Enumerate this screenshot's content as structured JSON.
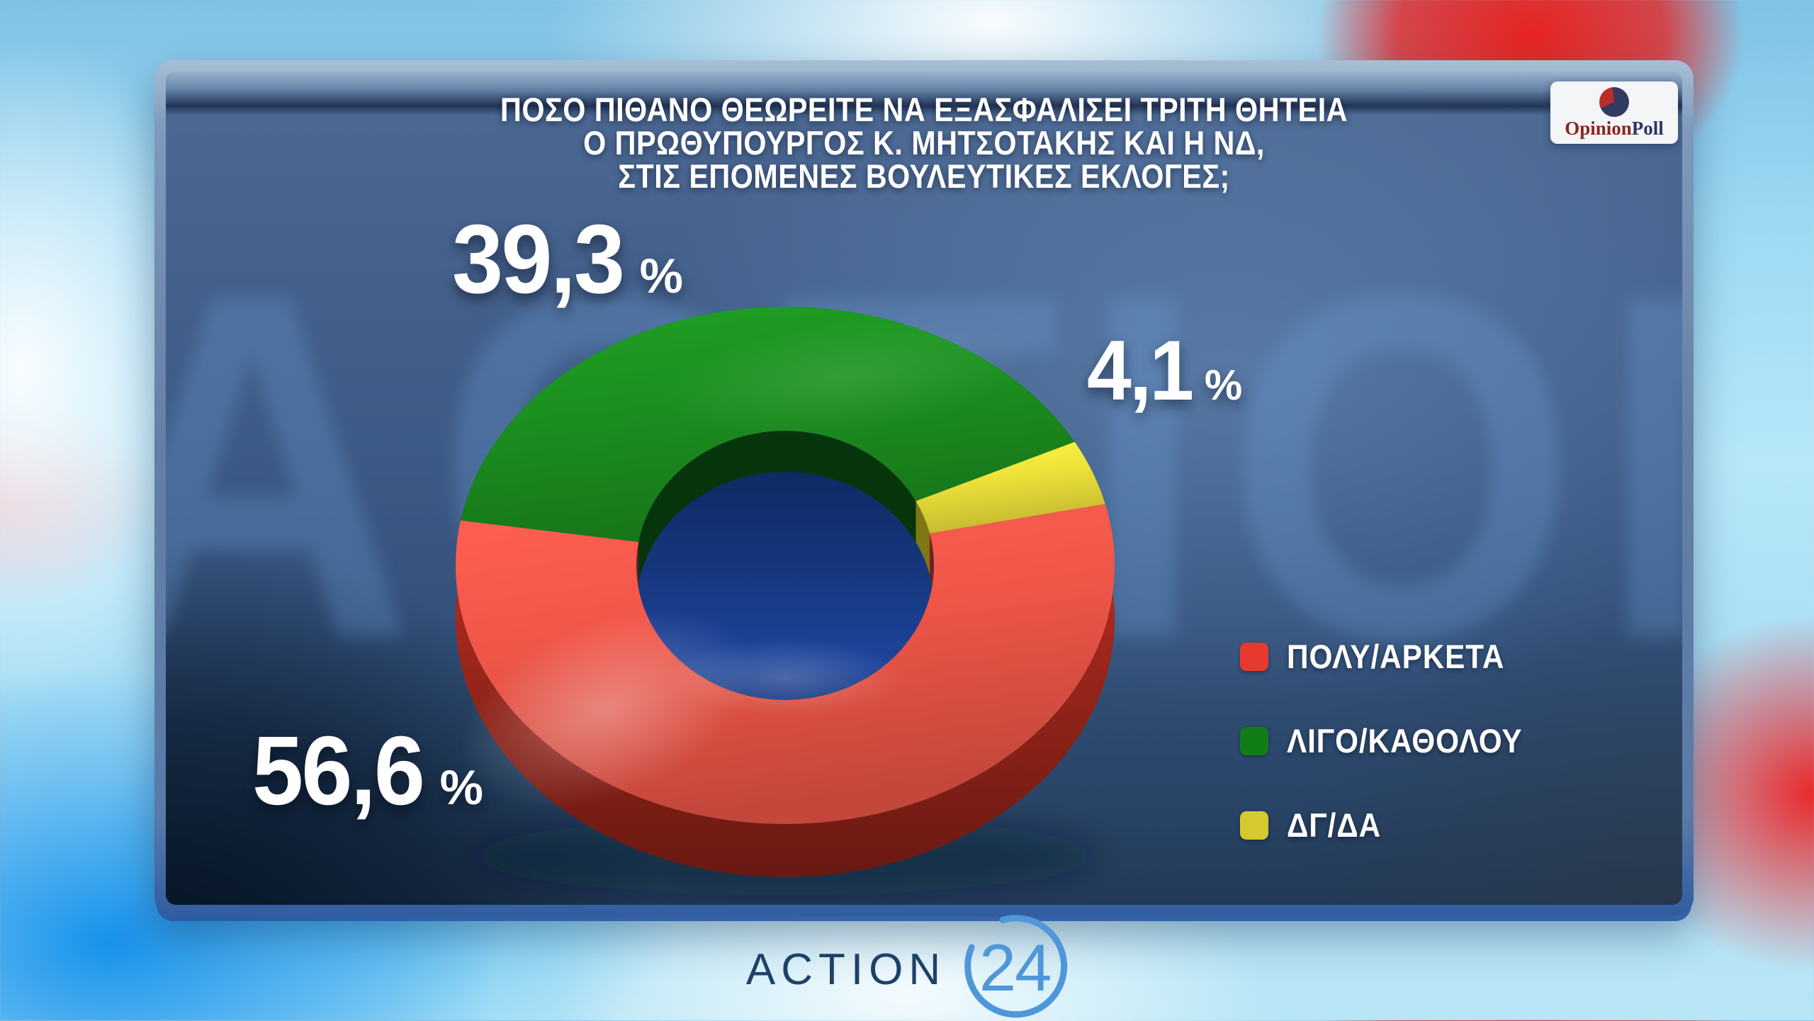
{
  "background": {
    "watermark_text": "ACTION"
  },
  "panel": {
    "title_lines": [
      "ΠΟΣΟ ΠΙΘΑΝΟ ΘΕΩΡΕΙΤΕ ΝΑ ΕΞΑΣΦΑΛΙΣΕΙ ΤΡΙΤΗ ΘΗΤΕΙΑ",
      "Ο ΠΡΩΘΥΠΟΥΡΓΟΣ Κ. ΜΗΤΣΟΤΑΚΗΣ ΚΑΙ Η ΝΔ,",
      "ΣΤΙΣ ΕΠΟΜΕΝΕΣ ΒΟΥΛΕΥΤΙΚΕΣ ΕΚΛΟΓΕΣ;"
    ]
  },
  "badge": {
    "brand_first": "Opinion",
    "brand_second": "Poll",
    "colors": {
      "first": "#8c2420",
      "second": "#2e3660",
      "pie_red": "#b92c28",
      "pie_navy": "#323a60"
    }
  },
  "chart_data": {
    "type": "pie",
    "subtype": "donut-3d",
    "title": "ΠΟΣΟ ΠΙΘΑΝΟ ΘΕΩΡΕΙΤΕ ΝΑ ΕΞΑΣΦΑΛΙΣΕΙ ΤΡΙΤΗ ΘΗΤΕΙΑ Ο ΠΡΩΘΥΠΟΥΡΓΟΣ Κ. ΜΗΤΣΟΤΑΚΗΣ ΚΑΙ Η ΝΔ, ΣΤΙΣ ΕΠΟΜΕΝΕΣ ΒΟΥΛΕΥΤΙΚΕΣ ΕΚΛΟΓΕΣ;",
    "unit": "%",
    "start_angle_deg": 170,
    "clockwise": true,
    "slices": [
      {
        "label": "ΛΙΓΟ/ΚΑΘΟΛΟΥ",
        "value": 39.3,
        "display": "39,3",
        "color": "#1c9020",
        "dark": "#0a4a0f"
      },
      {
        "label": "ΔΓ/ΔΑ",
        "value": 4.1,
        "display": "4,1",
        "color": "#eee23a",
        "dark": "#b0a41e"
      },
      {
        "label": "ΠΟΛΥ/ΑΡΚΕΤΑ",
        "value": 56.6,
        "display": "56,6",
        "color": "#ef5648",
        "dark": "#a8291d"
      }
    ],
    "legend": {
      "position": "right-bottom",
      "items": [
        {
          "label": "ΠΟΛΥ/ΑΡΚΕΤΑ",
          "color": "#e8392f"
        },
        {
          "label": "ΛΙΓΟ/ΚΑΘΟΛΟΥ",
          "color": "#117d17"
        },
        {
          "label": "ΔΓ/ΔΑ",
          "color": "#d4c92e"
        }
      ]
    }
  },
  "footer": {
    "channel": "ACTION",
    "channel_number": "24"
  }
}
